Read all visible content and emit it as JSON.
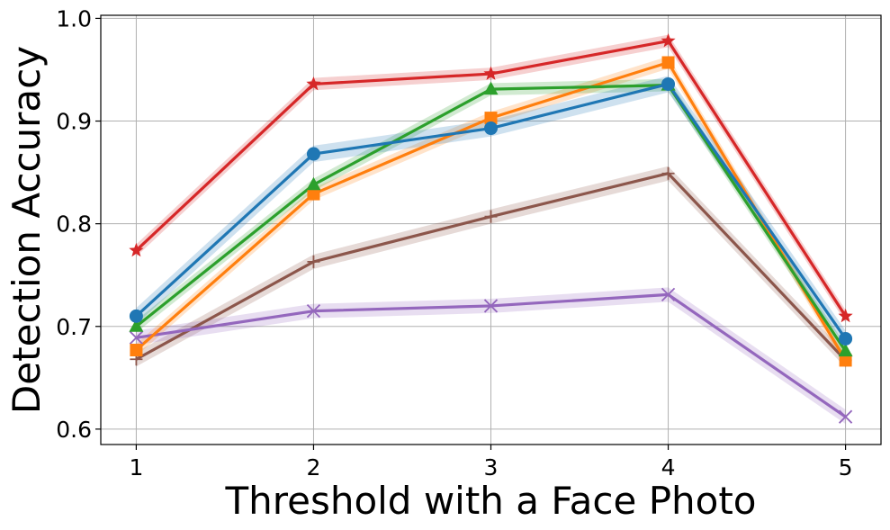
{
  "chart_data": {
    "type": "line",
    "title": "",
    "xlabel": "Threshold with a Face Photo",
    "ylabel": "Detection Accuracy",
    "x": [
      1,
      2,
      3,
      4,
      5
    ],
    "xlim": [
      0.8,
      5.2
    ],
    "ylim": [
      0.585,
      1.003
    ],
    "xticks": [
      "1",
      "2",
      "3",
      "4",
      "5"
    ],
    "yticks": [
      0.6,
      0.7,
      0.8,
      0.9,
      1.0
    ],
    "ytick_labels": [
      "0.6",
      "0.7",
      "0.8",
      "0.9",
      "1.0"
    ],
    "grid": true,
    "legend": "none",
    "series": [
      {
        "color": "#8c564b",
        "marker": "plus",
        "values": [
          0.668,
          0.763,
          0.807,
          0.849,
          0.667
        ],
        "band": 0.007
      },
      {
        "color": "#9467bd",
        "marker": "x",
        "values": [
          0.689,
          0.715,
          0.72,
          0.731,
          0.612
        ],
        "band": 0.007
      },
      {
        "color": "#ff7f0e",
        "marker": "square",
        "values": [
          0.677,
          0.829,
          0.903,
          0.957,
          0.667
        ],
        "band": 0.006
      },
      {
        "color": "#2ca02c",
        "marker": "triangle",
        "values": [
          0.7,
          0.838,
          0.931,
          0.935,
          0.676
        ],
        "band": 0.006
      },
      {
        "color": "#1f77b4",
        "marker": "circle",
        "values": [
          0.71,
          0.868,
          0.893,
          0.936,
          0.688
        ],
        "band": 0.008
      },
      {
        "color": "#d62728",
        "marker": "star",
        "values": [
          0.774,
          0.936,
          0.946,
          0.978,
          0.71
        ],
        "band": 0.006
      }
    ]
  }
}
